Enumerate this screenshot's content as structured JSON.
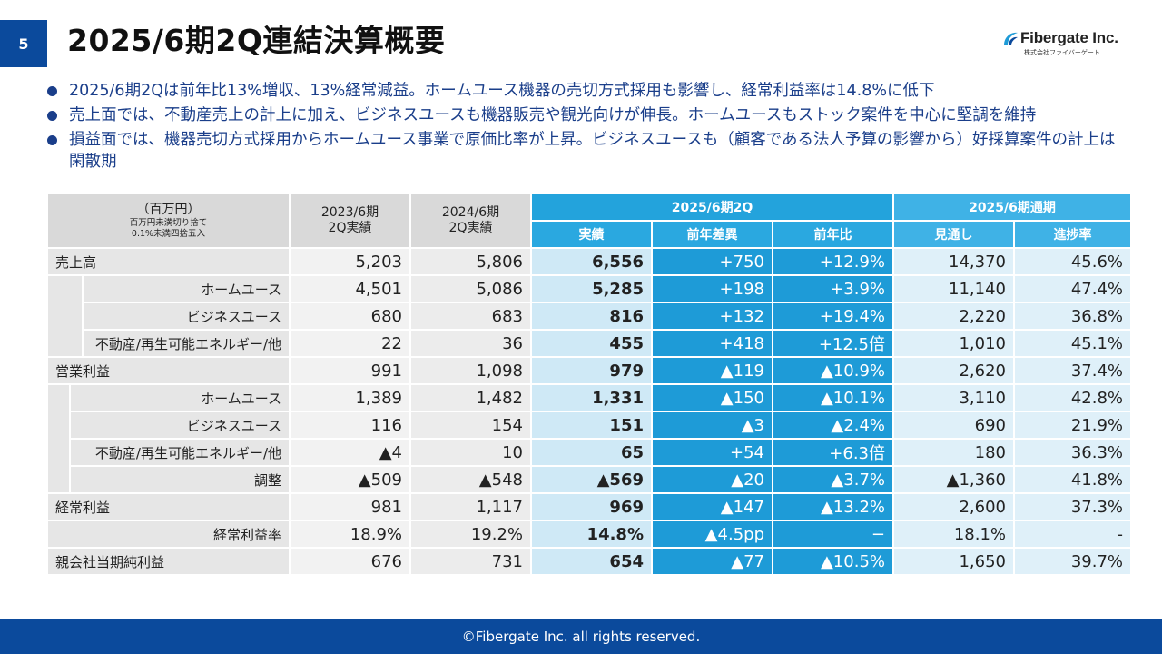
{
  "page_number": "5",
  "title": "2025/6期2Q連結決算概要",
  "logo": {
    "name": "Fibergate Inc.",
    "sub": "株式会社ファイバーゲート"
  },
  "bullets": [
    "2025/6期2Qは前年比13%増収、13%経常減益。ホームユース機器の売切方式採用も影響し、経常利益率は14.8%に低下",
    "売上面では、不動産売上の計上に加え、ビジネスユースも機器販売や観光向けが伸長。ホームユースもストック案件を中心に堅調を維持",
    "損益面では、機器売切方式採用からホームユース事業で原価比率が上昇。ビジネスユースも（顧客である法人予算の影響から）好採算案件の計上は閑散期"
  ],
  "table": {
    "unit_main": "（百万円）",
    "unit_sub1": "百万円未満切り捨て",
    "unit_sub2": "0.1%未満四捨五入",
    "col_2023": [
      "2023/6期",
      "2Q実績"
    ],
    "col_2024": [
      "2024/6期",
      "2Q実績"
    ],
    "group_2q": "2025/6期2Q",
    "group_full": "2025/6期通期",
    "sub_headers": [
      "実績",
      "前年差異",
      "前年比",
      "見通し",
      "進捗率"
    ],
    "rows": [
      {
        "label": "売上高",
        "v2023": "5,203",
        "v2024": "5,806",
        "actual": "6,556",
        "diff": "+750",
        "ratio": "+12.9%",
        "forecast": "14,370",
        "progress": "45.6%"
      },
      {
        "label": "ホームユース",
        "v2023": "4,501",
        "v2024": "5,086",
        "actual": "5,285",
        "diff": "+198",
        "ratio": "+3.9%",
        "forecast": "11,140",
        "progress": "47.4%"
      },
      {
        "label": "ビジネスユース",
        "v2023": "680",
        "v2024": "683",
        "actual": "816",
        "diff": "+132",
        "ratio": "+19.4%",
        "forecast": "2,220",
        "progress": "36.8%"
      },
      {
        "label": "不動産/再生可能エネルギー/他",
        "v2023": "22",
        "v2024": "36",
        "actual": "455",
        "diff": "+418",
        "ratio": "+12.5倍",
        "forecast": "1,010",
        "progress": "45.1%"
      },
      {
        "label": "営業利益",
        "v2023": "991",
        "v2024": "1,098",
        "actual": "979",
        "diff": "▲119",
        "ratio": "▲10.9%",
        "forecast": "2,620",
        "progress": "37.4%"
      },
      {
        "label": "ホームユース",
        "v2023": "1,389",
        "v2024": "1,482",
        "actual": "1,331",
        "diff": "▲150",
        "ratio": "▲10.1%",
        "forecast": "3,110",
        "progress": "42.8%"
      },
      {
        "label": "ビジネスユース",
        "v2023": "116",
        "v2024": "154",
        "actual": "151",
        "diff": "▲3",
        "ratio": "▲2.4%",
        "forecast": "690",
        "progress": "21.9%"
      },
      {
        "label": "不動産/再生可能エネルギー/他",
        "v2023": "▲4",
        "v2024": "10",
        "actual": "65",
        "diff": "+54",
        "ratio": "+6.3倍",
        "forecast": "180",
        "progress": "36.3%"
      },
      {
        "label": "調整",
        "v2023": "▲509",
        "v2024": "▲548",
        "actual": "▲569",
        "diff": "▲20",
        "ratio": "▲3.7%",
        "forecast": "▲1,360",
        "progress": "41.8%"
      },
      {
        "label": "経常利益",
        "v2023": "981",
        "v2024": "1,117",
        "actual": "969",
        "diff": "▲147",
        "ratio": "▲13.2%",
        "forecast": "2,600",
        "progress": "37.3%"
      },
      {
        "label": "経常利益率",
        "v2023": "18.9%",
        "v2024": "19.2%",
        "actual": "14.8%",
        "diff": "▲4.5pp",
        "ratio": "−",
        "forecast": "18.1%",
        "progress": "-"
      },
      {
        "label": "親会社当期純利益",
        "v2023": "676",
        "v2024": "731",
        "actual": "654",
        "diff": "▲77",
        "ratio": "▲10.5%",
        "forecast": "1,650",
        "progress": "39.7%"
      }
    ]
  },
  "footer": "©Fibergate Inc. all rights reserved.",
  "colors": {
    "brand": "#0b4a9c",
    "accent": "#1e9bd7",
    "header_light": "#3fb2e6",
    "bullet_text": "#1a3e8a"
  }
}
